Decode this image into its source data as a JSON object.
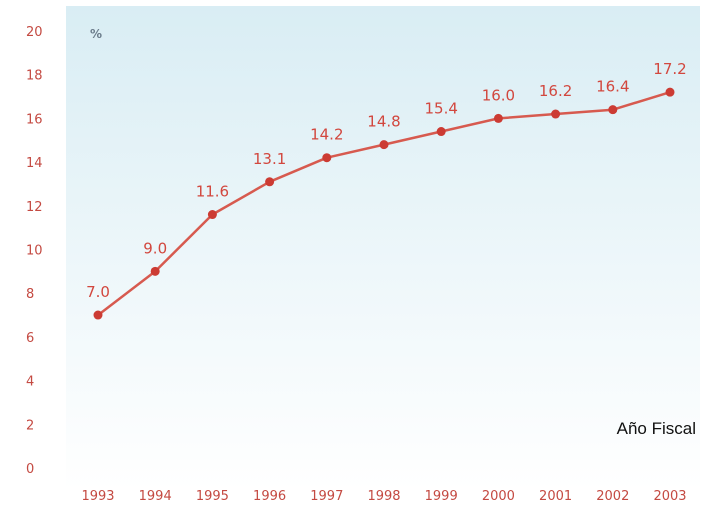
{
  "chart_data": {
    "type": "line",
    "title": "",
    "xlabel": "Año Fiscal",
    "ylabel": "",
    "y_unit": "%",
    "categories": [
      "1993",
      "1994",
      "1995",
      "1996",
      "1997",
      "1998",
      "1999",
      "2000",
      "2001",
      "2002",
      "2003"
    ],
    "series": [
      {
        "values": [
          7.0,
          9.0,
          11.6,
          13.1,
          14.2,
          14.8,
          15.4,
          16.0,
          16.2,
          16.4,
          17.2
        ]
      }
    ],
    "data_labels": [
      "7.0",
      "9.0",
      "11.6",
      "13.1",
      "14.2",
      "14.8",
      "15.4",
      "16.0",
      "16.2",
      "16.4",
      "17.2"
    ],
    "ylim": [
      0,
      20
    ],
    "y_ticks": [
      "0",
      "2",
      "4",
      "6",
      "8",
      "10",
      "12",
      "14",
      "16",
      "18",
      "20"
    ],
    "grid": false,
    "legend": "none",
    "colors": {
      "line": "#d75a4f",
      "marker": "#cc3b33",
      "label": "#d2473e",
      "tick": "#c44a42",
      "background_top": "#d9edf4",
      "background_bottom": "#ffffff"
    }
  }
}
